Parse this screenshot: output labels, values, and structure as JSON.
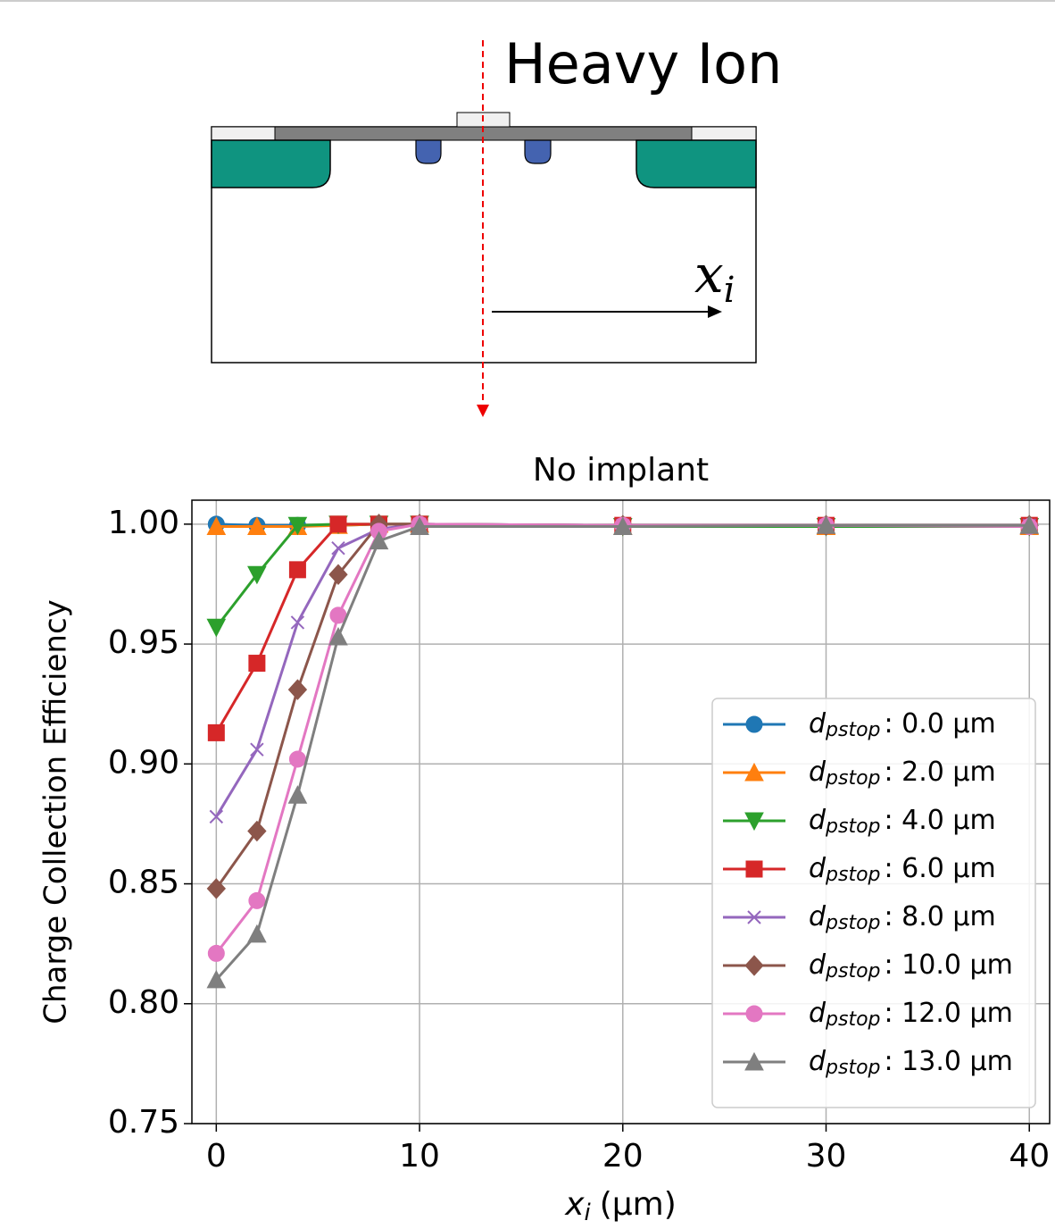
{
  "diagram": {
    "ion_label": "Heavy Ion",
    "axis_symbol": "x",
    "axis_subscript": "i"
  },
  "chart_data": {
    "type": "line",
    "title": "No implant",
    "xlabel": {
      "symbol": "x",
      "subscript": "i",
      "unit": "(µm)"
    },
    "ylabel": "Charge Collection Efficiency",
    "x": [
      0,
      2,
      4,
      6,
      8,
      10,
      20,
      30,
      40
    ],
    "xlim": [
      -1.2,
      41
    ],
    "xticks": [
      0,
      10,
      20,
      30,
      40
    ],
    "ylim": [
      0.75,
      1.01
    ],
    "yticks": [
      {
        "value": 0.75,
        "label": "0.75"
      },
      {
        "value": 0.8,
        "label": "0.80"
      },
      {
        "value": 0.85,
        "label": "0.85"
      },
      {
        "value": 0.9,
        "label": "0.90"
      },
      {
        "value": 0.95,
        "label": "0.95"
      },
      {
        "value": 1.0,
        "label": "1.00"
      }
    ],
    "grid": true,
    "legend": "lower right",
    "series": [
      {
        "name": "d",
        "subscript": "pstop",
        "label": ": 0.0 µm",
        "color": "#1f77b4",
        "marker": "o",
        "values": [
          1.0,
          0.9995,
          0.9995,
          0.9995,
          1.0,
          1.0,
          0.9995,
          0.999,
          0.9995
        ]
      },
      {
        "name": "d",
        "subscript": "pstop",
        "label": ": 2.0 µm",
        "color": "#ff7f0e",
        "marker": "^",
        "values": [
          0.999,
          0.999,
          0.999,
          0.9995,
          1.0,
          1.0,
          0.999,
          0.999,
          0.999
        ]
      },
      {
        "name": "d",
        "subscript": "pstop",
        "label": ": 4.0 µm",
        "color": "#2ca02c",
        "marker": "v",
        "values": [
          0.957,
          0.979,
          0.9995,
          1.0,
          1.0,
          1.0,
          0.999,
          0.999,
          0.999
        ]
      },
      {
        "name": "d",
        "subscript": "pstop",
        "label": ": 6.0 µm",
        "color": "#d62728",
        "marker": "s",
        "values": [
          0.913,
          0.942,
          0.981,
          1.0,
          1.0,
          1.0,
          0.9995,
          0.9995,
          0.9995
        ]
      },
      {
        "name": "d",
        "subscript": "pstop",
        "label": ": 8.0 µm",
        "color": "#9467bd",
        "marker": "x",
        "values": [
          0.878,
          0.906,
          0.959,
          0.99,
          0.998,
          1.0,
          0.9995,
          0.9995,
          0.9995
        ]
      },
      {
        "name": "d",
        "subscript": "pstop",
        "label": ": 10.0 µm",
        "color": "#8c564b",
        "marker": "D",
        "values": [
          0.848,
          0.872,
          0.931,
          0.979,
          1.0,
          1.0,
          0.9995,
          0.9995,
          0.9995
        ]
      },
      {
        "name": "d",
        "subscript": "pstop",
        "label": ": 12.0 µm",
        "color": "#e377c2",
        "marker": "o",
        "values": [
          0.821,
          0.843,
          0.902,
          0.962,
          0.997,
          1.0,
          0.9995,
          0.9995,
          0.999
        ]
      },
      {
        "name": "d",
        "subscript": "pstop",
        "label": ": 13.0 µm",
        "color": "#7f7f7f",
        "marker": "^",
        "values": [
          0.81,
          0.829,
          0.887,
          0.953,
          0.993,
          0.999,
          0.999,
          0.9995,
          0.9995
        ]
      }
    ]
  }
}
